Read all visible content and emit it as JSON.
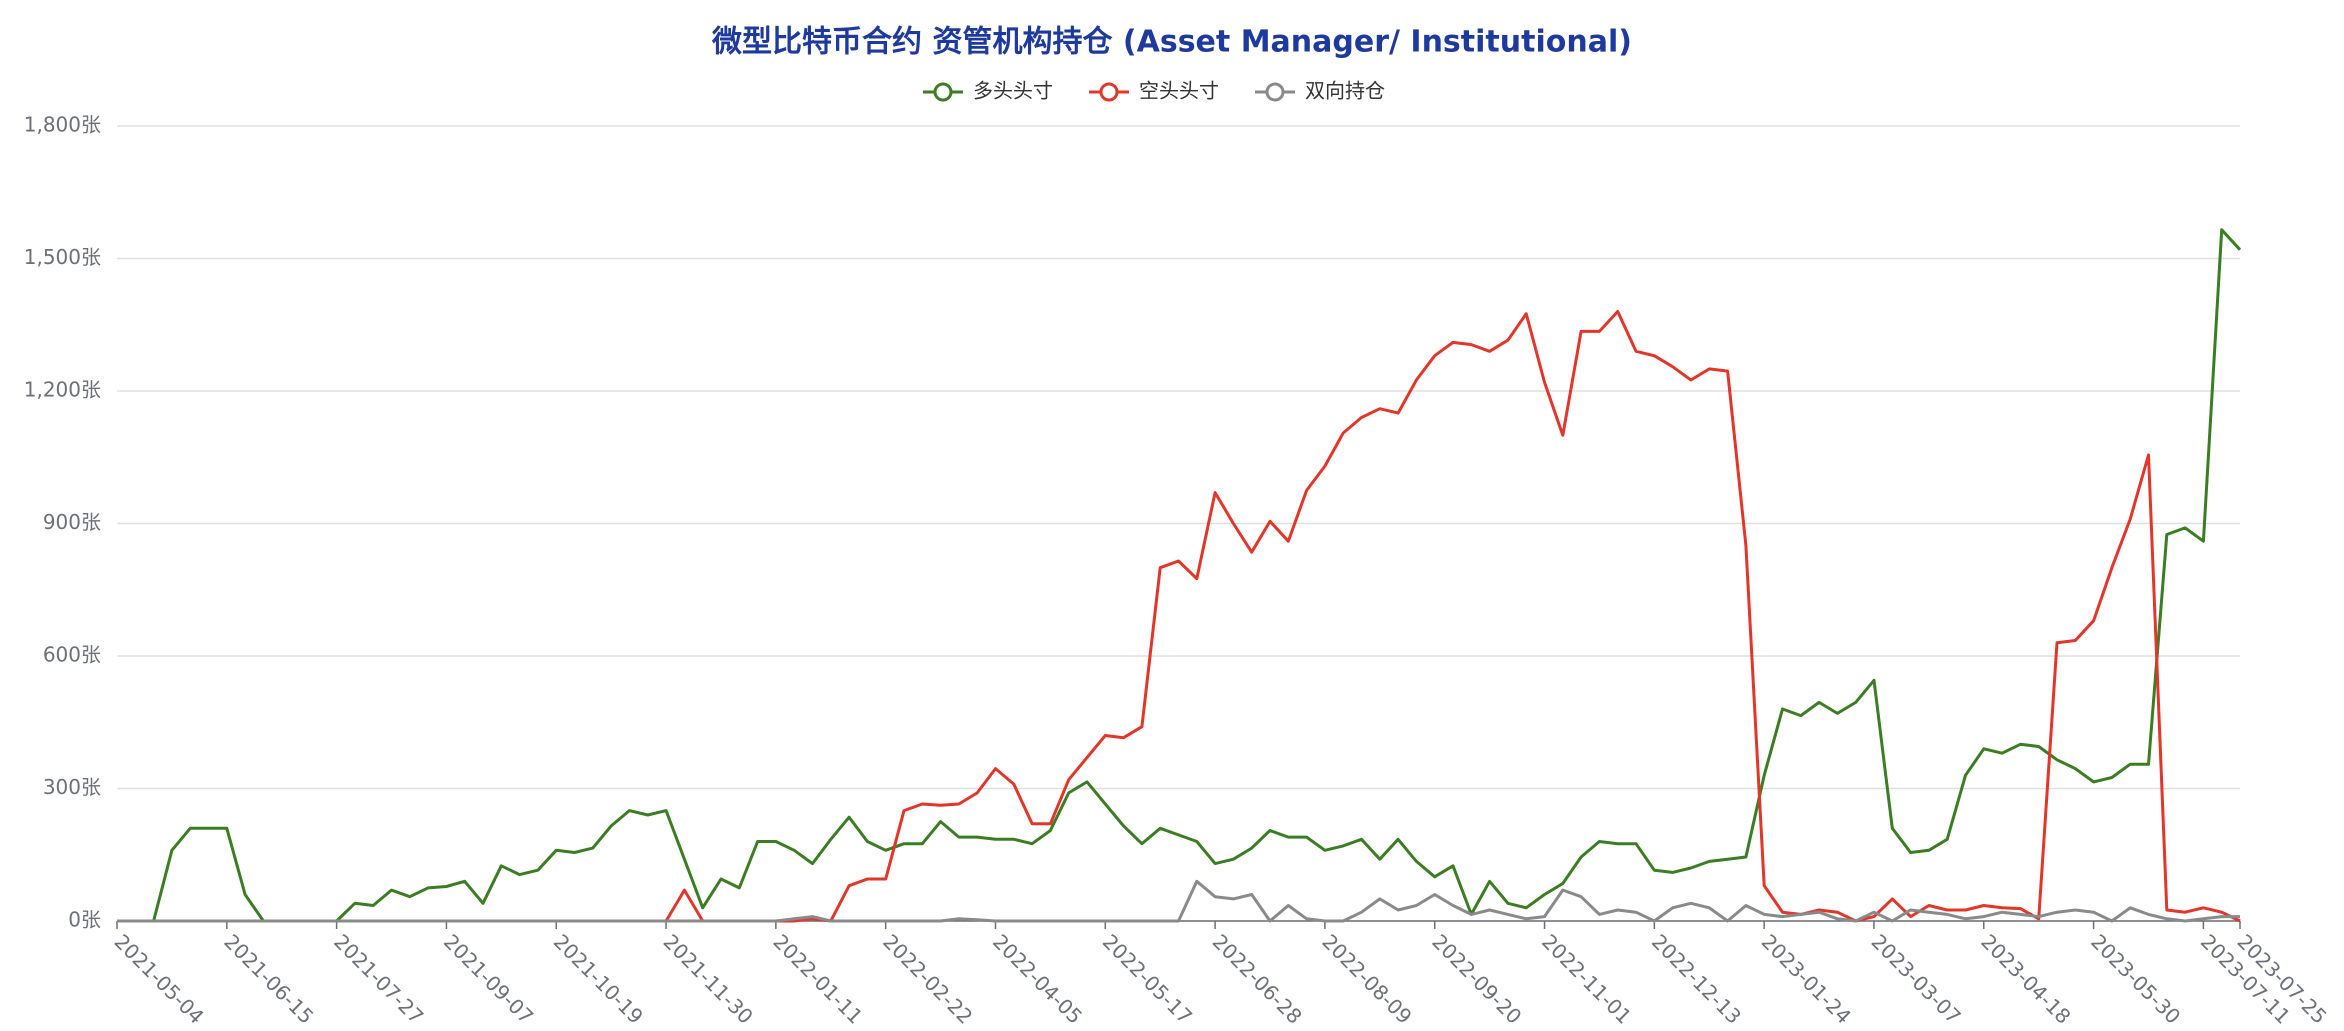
{
  "chart_data": {
    "type": "line",
    "title": "微型比特币合约 资管机构持仓 (Asset Manager/ Institutional)",
    "categories": [
      "2021-05-04",
      null,
      null,
      null,
      null,
      null,
      "2021-06-15",
      null,
      null,
      null,
      null,
      null,
      "2021-07-27",
      null,
      null,
      null,
      null,
      null,
      "2021-09-07",
      null,
      null,
      null,
      null,
      null,
      "2021-10-19",
      null,
      null,
      null,
      null,
      null,
      "2021-11-30",
      null,
      null,
      null,
      null,
      null,
      "2022-01-11",
      null,
      null,
      null,
      null,
      null,
      "2022-02-22",
      null,
      null,
      null,
      null,
      null,
      "2022-04-05",
      null,
      null,
      null,
      null,
      null,
      "2022-05-17",
      null,
      null,
      null,
      null,
      null,
      "2022-06-28",
      null,
      null,
      null,
      null,
      null,
      "2022-08-09",
      null,
      null,
      null,
      null,
      null,
      "2022-09-20",
      null,
      null,
      null,
      null,
      null,
      "2022-11-01",
      null,
      null,
      null,
      null,
      null,
      "2022-12-13",
      null,
      null,
      null,
      null,
      null,
      "2023-01-24",
      null,
      null,
      null,
      null,
      null,
      "2023-03-07",
      null,
      null,
      null,
      null,
      null,
      "2023-04-18",
      null,
      null,
      null,
      null,
      null,
      "2023-05-30",
      null,
      null,
      null,
      null,
      null,
      "2023-07-11",
      null,
      "2023-07-25"
    ],
    "series": [
      {
        "name": "多头头寸",
        "color": "#3b7d23",
        "values": [
          0,
          0,
          0,
          160,
          210,
          210,
          210,
          60,
          0,
          0,
          0,
          0,
          0,
          40,
          35,
          70,
          55,
          75,
          78,
          90,
          40,
          125,
          105,
          115,
          160,
          155,
          165,
          215,
          250,
          240,
          250,
          140,
          30,
          95,
          75,
          180,
          180,
          160,
          130,
          185,
          235,
          180,
          160,
          175,
          175,
          225,
          190,
          190,
          185,
          185,
          175,
          205,
          290,
          315,
          265,
          215,
          175,
          210,
          195,
          180,
          130,
          140,
          165,
          205,
          190,
          190,
          160,
          170,
          185,
          140,
          185,
          135,
          100,
          125,
          15,
          90,
          40,
          30,
          60,
          85,
          145,
          180,
          175,
          175,
          115,
          110,
          120,
          135,
          140,
          145,
          330,
          480,
          465,
          495,
          470,
          495,
          545,
          210,
          155,
          160,
          185,
          330,
          390,
          380,
          400,
          395,
          365,
          345,
          315,
          325,
          355,
          355,
          875,
          890,
          860,
          1565,
          1520
        ]
      },
      {
        "name": "空头头寸",
        "color": "#e2362a",
        "values": [
          0,
          0,
          0,
          0,
          0,
          0,
          0,
          0,
          0,
          0,
          0,
          0,
          0,
          0,
          0,
          0,
          0,
          0,
          0,
          0,
          0,
          0,
          0,
          0,
          0,
          0,
          0,
          0,
          0,
          0,
          0,
          70,
          0,
          0,
          0,
          0,
          0,
          0,
          5,
          0,
          80,
          95,
          95,
          250,
          265,
          262,
          265,
          290,
          345,
          310,
          220,
          220,
          320,
          370,
          420,
          415,
          440,
          800,
          815,
          775,
          970,
          900,
          835,
          905,
          860,
          975,
          1030,
          1105,
          1140,
          1160,
          1150,
          1225,
          1280,
          1310,
          1305,
          1290,
          1315,
          1375,
          1220,
          1100,
          1335,
          1335,
          1380,
          1290,
          1280,
          1255,
          1225,
          1250,
          1245,
          850,
          80,
          20,
          15,
          25,
          20,
          0,
          10,
          50,
          10,
          35,
          25,
          25,
          35,
          30,
          28,
          5,
          630,
          635,
          680,
          800,
          910,
          1055,
          25,
          20,
          30,
          20,
          0
        ]
      },
      {
        "name": "双向持仓",
        "color": "#8a8a8a",
        "values": [
          0,
          0,
          0,
          0,
          0,
          0,
          0,
          0,
          0,
          0,
          0,
          0,
          0,
          0,
          0,
          0,
          0,
          0,
          0,
          0,
          0,
          0,
          0,
          0,
          0,
          0,
          0,
          0,
          0,
          0,
          0,
          0,
          0,
          0,
          0,
          0,
          0,
          5,
          10,
          0,
          0,
          0,
          0,
          0,
          0,
          0,
          5,
          3,
          0,
          0,
          0,
          0,
          0,
          0,
          0,
          0,
          0,
          0,
          0,
          90,
          55,
          50,
          60,
          0,
          35,
          5,
          0,
          0,
          20,
          50,
          25,
          35,
          60,
          35,
          15,
          25,
          15,
          5,
          10,
          70,
          55,
          15,
          25,
          20,
          0,
          30,
          40,
          30,
          0,
          35,
          15,
          10,
          15,
          20,
          5,
          0,
          20,
          0,
          25,
          20,
          15,
          5,
          10,
          20,
          15,
          10,
          20,
          25,
          20,
          0,
          30,
          15,
          5,
          0,
          5,
          10,
          10
        ]
      }
    ],
    "ylim": [
      0,
      1800
    ],
    "yticks": [
      {
        "value": 0,
        "label": "0张"
      },
      {
        "value": 300,
        "label": "300张"
      },
      {
        "value": 600,
        "label": "600张"
      },
      {
        "value": 900,
        "label": "900张"
      },
      {
        "value": 1200,
        "label": "1,200张"
      },
      {
        "value": 1500,
        "label": "1,500张"
      },
      {
        "value": 1800,
        "label": "1,800张"
      }
    ],
    "grid": true,
    "legend": "top"
  }
}
